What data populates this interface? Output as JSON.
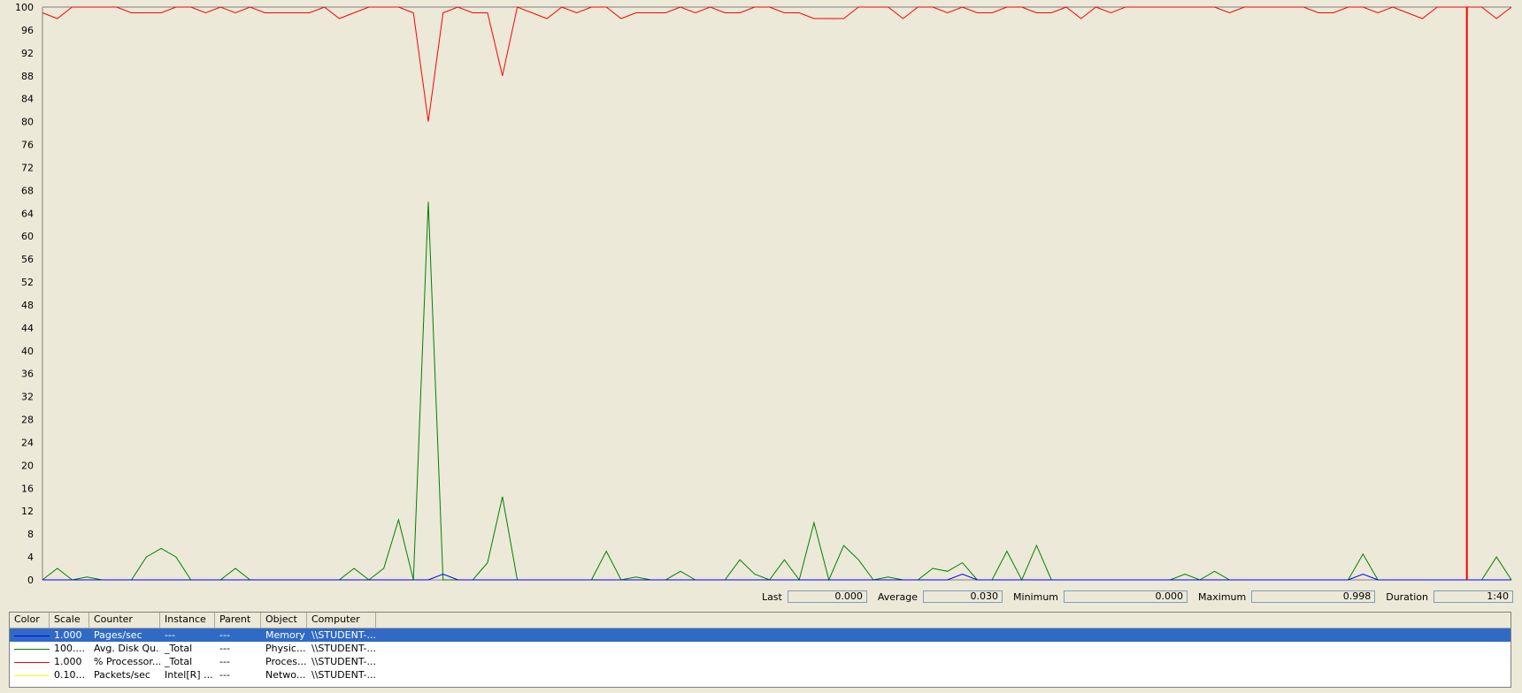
{
  "chart_data": {
    "type": "line",
    "ylim": [
      0,
      100
    ],
    "yticks": [
      100,
      96,
      92,
      88,
      84,
      80,
      76,
      72,
      68,
      64,
      60,
      56,
      52,
      48,
      44,
      40,
      36,
      32,
      28,
      24,
      20,
      16,
      12,
      8,
      4,
      0
    ],
    "grid": false,
    "x_count": 100,
    "current_time_marker_x": 96,
    "series": [
      {
        "color": "#ff0000",
        "values": [
          99,
          98,
          100,
          100,
          100,
          100,
          99,
          99,
          99,
          100,
          100,
          99,
          100,
          99,
          100,
          99,
          99,
          99,
          99,
          100,
          98,
          99,
          100,
          100,
          100,
          99,
          80,
          99,
          100,
          99,
          99,
          88,
          100,
          99,
          98,
          100,
          99,
          100,
          100,
          98,
          99,
          99,
          99,
          100,
          99,
          100,
          99,
          99,
          100,
          100,
          99,
          99,
          98,
          98,
          98,
          100,
          100,
          100,
          98,
          100,
          100,
          99,
          100,
          99,
          99,
          100,
          100,
          99,
          99,
          100,
          98,
          100,
          99,
          100,
          100,
          100,
          100,
          100,
          100,
          100,
          99,
          100,
          100,
          100,
          100,
          100,
          99,
          99,
          100,
          100,
          99,
          100,
          99,
          98,
          100,
          100,
          100,
          100,
          98,
          100
        ]
      },
      {
        "color": "#008000",
        "values": [
          0,
          2,
          0,
          0.5,
          0,
          0,
          0,
          4,
          5.5,
          4,
          0,
          0,
          0,
          2,
          0,
          0,
          0,
          0,
          0,
          0,
          0,
          2,
          0,
          2,
          10.5,
          0,
          66,
          0,
          0,
          0,
          3,
          14.5,
          0,
          0,
          0,
          0,
          0,
          0,
          5,
          0,
          0.5,
          0,
          0,
          1.5,
          0,
          0,
          0,
          3.5,
          1,
          0,
          3.5,
          0,
          10,
          0,
          6,
          3.5,
          0,
          0.5,
          0,
          0,
          2,
          1.5,
          3,
          0,
          0,
          5,
          0,
          6,
          0,
          0,
          0,
          0,
          0,
          0,
          0,
          0,
          0,
          1,
          0,
          1.5,
          0,
          0,
          0,
          0,
          0,
          0,
          0,
          0,
          0,
          4.5,
          0,
          0,
          0,
          0,
          0,
          0,
          0,
          0,
          4,
          0
        ]
      },
      {
        "color": "#0000ff",
        "values": [
          0,
          0,
          0,
          0,
          0,
          0,
          0,
          0,
          0,
          0,
          0,
          0,
          0,
          0,
          0,
          0,
          0,
          0,
          0,
          0,
          0,
          0,
          0,
          0,
          0,
          0,
          0,
          1,
          0,
          0,
          0,
          0,
          0,
          0,
          0,
          0,
          0,
          0,
          0,
          0,
          0,
          0,
          0,
          0,
          0,
          0,
          0,
          0,
          0,
          0,
          0,
          0,
          0,
          0,
          0,
          0,
          0,
          0,
          0,
          0,
          0,
          0,
          1,
          0,
          0,
          0,
          0,
          0,
          0,
          0,
          0,
          0,
          0,
          0,
          0,
          0,
          0,
          0,
          0,
          0,
          0,
          0,
          0,
          0,
          0,
          0,
          0,
          0,
          0,
          1,
          0,
          0,
          0,
          0,
          0,
          0,
          0,
          0,
          0,
          0
        ]
      }
    ]
  },
  "stats": {
    "last_label": "Last",
    "last_value": "0.000",
    "average_label": "Average",
    "average_value": "0.030",
    "minimum_label": "Minimum",
    "minimum_value": "0.000",
    "maximum_label": "Maximum",
    "maximum_value": "0.998",
    "duration_label": "Duration",
    "duration_value": "1:40"
  },
  "legend": {
    "headers": [
      "Color",
      "Scale",
      "Counter",
      "Instance",
      "Parent",
      "Object",
      "Computer"
    ],
    "rows": [
      {
        "color": "#0000ff",
        "scale": "1.000",
        "counter": "Pages/sec",
        "instance": "---",
        "parent": "---",
        "object": "Memory",
        "computer": "\\\\STUDENT-..."
      },
      {
        "color": "#008000",
        "scale": "100....",
        "counter": "Avg. Disk Qu...",
        "instance": "_Total",
        "parent": "---",
        "object": "Physic...",
        "computer": "\\\\STUDENT-..."
      },
      {
        "color": "#ff0000",
        "scale": "1.000",
        "counter": "% Processor...",
        "instance": "_Total",
        "parent": "---",
        "object": "Proces...",
        "computer": "\\\\STUDENT-..."
      },
      {
        "color": "#ffff00",
        "scale": "0.10...",
        "counter": "Packets/sec",
        "instance": "Intel[R] ...",
        "parent": "---",
        "object": "Netwo...",
        "computer": "\\\\STUDENT-..."
      }
    ]
  }
}
